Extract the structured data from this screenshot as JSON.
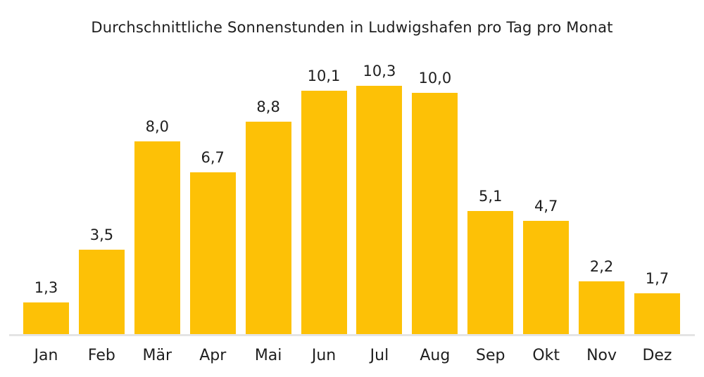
{
  "title": "Durchschnittliche Sonnenstunden in Ludwigshafen pro Tag pro Monat",
  "chart_data": {
    "type": "bar",
    "title": "Durchschnittliche Sonnenstunden in Ludwigshafen pro Tag pro Monat",
    "categories": [
      "Jan",
      "Feb",
      "Mär",
      "Apr",
      "Mai",
      "Jun",
      "Jul",
      "Aug",
      "Sep",
      "Okt",
      "Nov",
      "Dez"
    ],
    "values": [
      1.3,
      3.5,
      8.0,
      6.7,
      8.8,
      10.1,
      10.3,
      10.0,
      5.1,
      4.7,
      2.2,
      1.7
    ],
    "value_labels": [
      "1,3",
      "3,5",
      "8,0",
      "6,7",
      "8,8",
      "10,1",
      "10,3",
      "10,0",
      "5,1",
      "4,7",
      "2,2",
      "1,7"
    ],
    "xlabel": "",
    "ylabel": "",
    "ylim": [
      0,
      10.3
    ],
    "grid": false,
    "legend": false,
    "value_labels_position": "above-bars",
    "decimal_format": "german-comma",
    "bar_color": "#FDC106",
    "baseline_color": "#E4E4E4",
    "text_color": "#1E1E1E",
    "background_color": "#FFFFFF"
  }
}
